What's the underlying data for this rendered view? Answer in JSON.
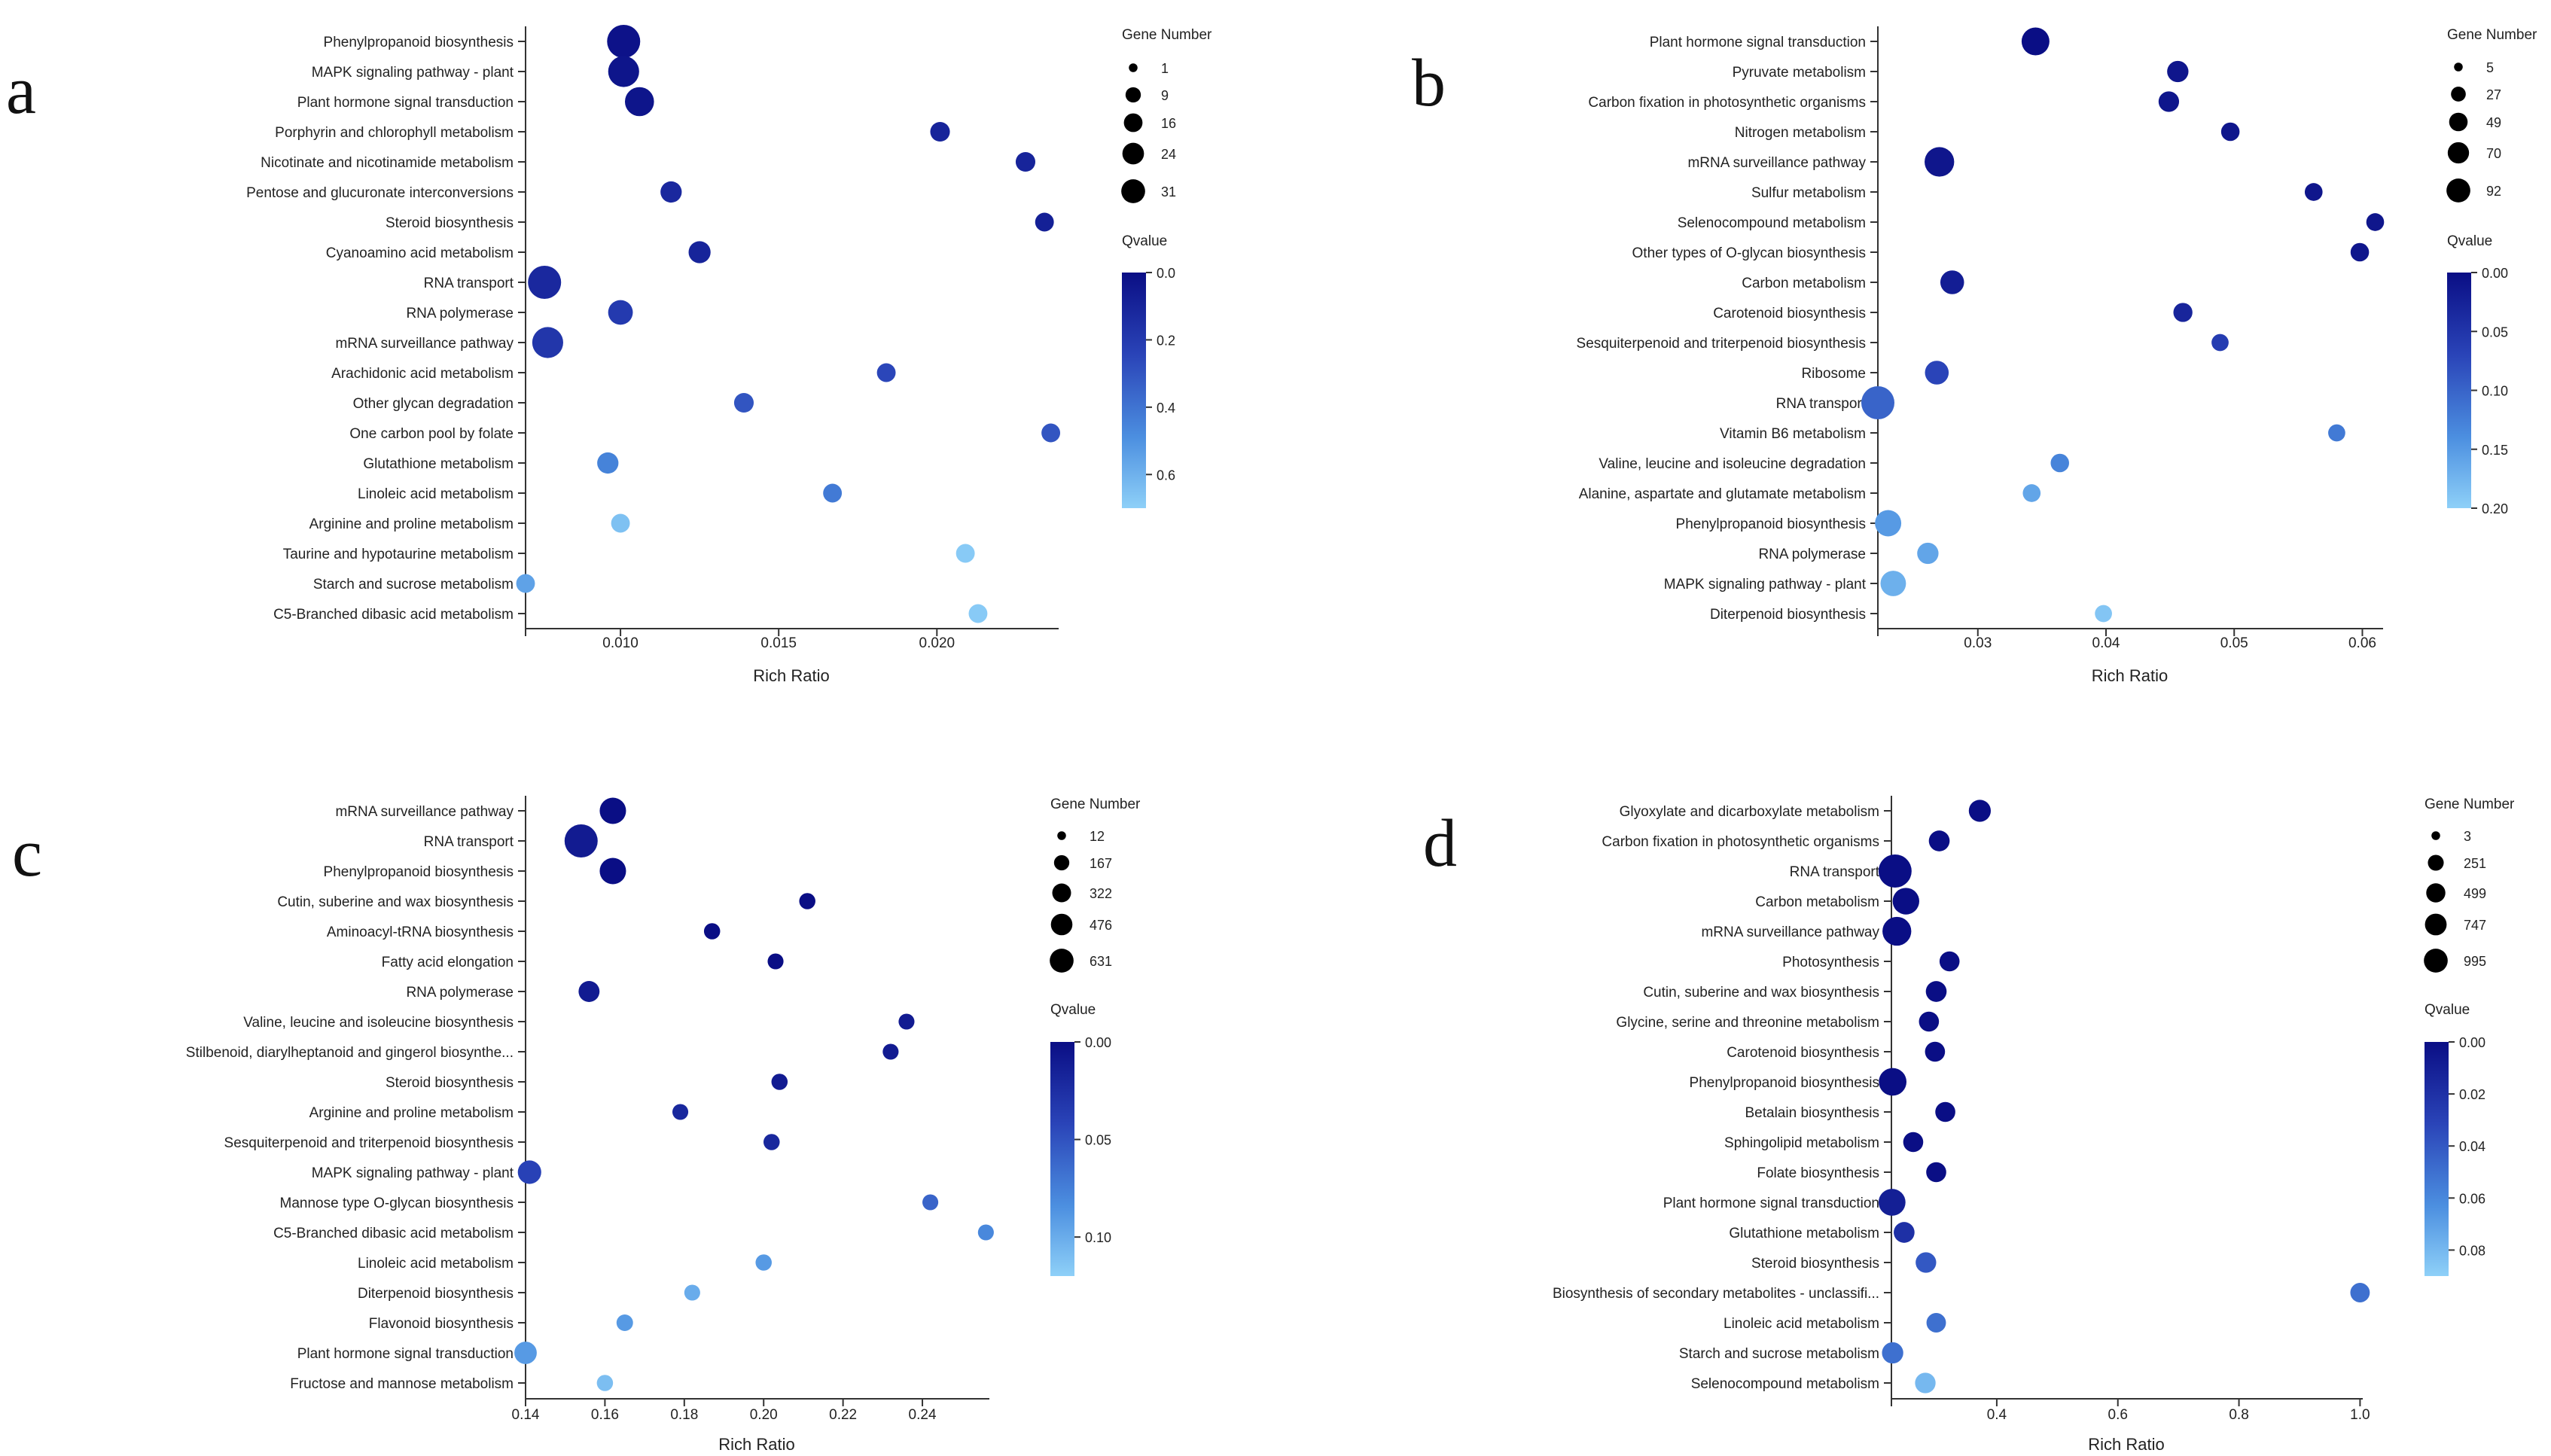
{
  "chart_data": [
    {
      "panel": "a",
      "type": "scatter",
      "xlabel": "Rich Ratio",
      "xlim": [
        0.007,
        0.0238
      ],
      "xticks": [
        "0.010",
        "0.015",
        "0.020"
      ],
      "xtick_values": [
        0.01,
        0.015,
        0.02
      ],
      "size_legend": {
        "title": "Gene Number",
        "labels": [
          "1",
          "9",
          "16",
          "24",
          "31"
        ],
        "values": [
          1,
          9,
          16,
          24,
          31
        ]
      },
      "color_legend": {
        "title": "Qvalue",
        "labels": [
          "0.0",
          "0.2",
          "0.4",
          "0.6"
        ],
        "values": [
          0.0,
          0.2,
          0.4,
          0.6
        ],
        "range": [
          0.0,
          0.7
        ]
      },
      "categories": [
        "Phenylpropanoid biosynthesis",
        "MAPK signaling pathway - plant",
        "Plant hormone signal transduction",
        "Porphyrin and chlorophyll metabolism",
        "Nicotinate and nicotinamide metabolism",
        "Pentose and glucuronate interconversions",
        "Steroid biosynthesis",
        "Cyanoamino acid metabolism",
        "RNA transport",
        "RNA polymerase",
        "mRNA surveillance pathway",
        "Arachidonic acid metabolism",
        "Other glycan degradation",
        "One carbon pool by folate",
        "Glutathione metabolism",
        "Linoleic acid metabolism",
        "Arginine and proline metabolism",
        "Taurine and hypotaurine metabolism",
        "Starch and sucrose metabolism",
        "C5-Branched dibasic acid metabolism"
      ],
      "x": [
        0.0101,
        0.0101,
        0.0106,
        0.0201,
        0.0228,
        0.0116,
        0.0234,
        0.0125,
        0.0076,
        0.01,
        0.0077,
        0.0184,
        0.0139,
        0.0236,
        0.0096,
        0.0167,
        0.01,
        0.0209,
        0.007,
        0.0213
      ],
      "gene_number": [
        31,
        26,
        22,
        7,
        7,
        9,
        6,
        10,
        31,
        14,
        26,
        6,
        7,
        6,
        9,
        6,
        6,
        6,
        6,
        6
      ],
      "qvalue": [
        0.02,
        0.03,
        0.03,
        0.1,
        0.1,
        0.12,
        0.08,
        0.1,
        0.12,
        0.2,
        0.18,
        0.25,
        0.3,
        0.3,
        0.45,
        0.42,
        0.65,
        0.68,
        0.55,
        0.68
      ]
    },
    {
      "panel": "b",
      "type": "scatter",
      "xlabel": "Rich Ratio",
      "xlim": [
        0.0222,
        0.0615
      ],
      "xticks": [
        "0.03",
        "0.04",
        "0.05",
        "0.06"
      ],
      "xtick_values": [
        0.03,
        0.04,
        0.05,
        0.06
      ],
      "size_legend": {
        "title": "Gene Number",
        "labels": [
          "5",
          "27",
          "49",
          "70",
          "92"
        ],
        "values": [
          5,
          27,
          49,
          70,
          92
        ]
      },
      "color_legend": {
        "title": "Qvalue",
        "labels": [
          "0.00",
          "0.05",
          "0.10",
          "0.15",
          "0.20"
        ],
        "values": [
          0.0,
          0.05,
          0.1,
          0.15,
          0.2
        ],
        "range": [
          0.0,
          0.2
        ]
      },
      "categories": [
        "Plant hormone signal transduction",
        "Pyruvate metabolism",
        "Carbon fixation in photosynthetic organisms",
        "Nitrogen metabolism",
        "mRNA surveillance pathway",
        "Sulfur metabolism",
        "Selenocompound metabolism",
        "Other types of O-glycan biosynthesis",
        "Carbon metabolism",
        "Carotenoid biosynthesis",
        "Sesquiterpenoid and triterpenoid biosynthesis",
        "Ribosome",
        "RNA transport",
        "Vitamin B6 metabolism",
        "Valine, leucine and isoleucine degradation",
        "Alanine, aspartate and glutamate metabolism",
        "Phenylpropanoid biosynthesis",
        "RNA polymerase",
        "MAPK signaling pathway - plant",
        "Diterpenoid biosynthesis"
      ],
      "x": [
        0.0345,
        0.0456,
        0.0449,
        0.0497,
        0.027,
        0.0562,
        0.061,
        0.0598,
        0.028,
        0.046,
        0.0489,
        0.0268,
        0.0222,
        0.058,
        0.0364,
        0.0342,
        0.023,
        0.0261,
        0.0234,
        0.0398
      ],
      "gene_number": [
        60,
        30,
        27,
        20,
        70,
        18,
        18,
        20,
        40,
        22,
        16,
        40,
        92,
        16,
        20,
        18,
        52,
        30,
        48,
        16
      ],
      "qvalue": [
        0.0,
        0.01,
        0.01,
        0.01,
        0.01,
        0.01,
        0.01,
        0.01,
        0.02,
        0.03,
        0.06,
        0.07,
        0.1,
        0.12,
        0.13,
        0.16,
        0.15,
        0.16,
        0.17,
        0.19
      ]
    },
    {
      "panel": "c",
      "type": "scatter",
      "xlabel": "Rich Ratio",
      "xlim": [
        0.14,
        0.2565
      ],
      "xticks": [
        "0.14",
        "0.16",
        "0.18",
        "0.20",
        "0.22",
        "0.24"
      ],
      "xtick_values": [
        0.14,
        0.16,
        0.18,
        0.2,
        0.22,
        0.24
      ],
      "size_legend": {
        "title": "Gene Number",
        "labels": [
          "12",
          "167",
          "322",
          "476",
          "631"
        ],
        "values": [
          12,
          167,
          322,
          476,
          631
        ]
      },
      "color_legend": {
        "title": "Qvalue",
        "labels": [
          "0.00",
          "0.05",
          "0.10"
        ],
        "values": [
          0.0,
          0.05,
          0.1
        ],
        "range": [
          0.0,
          0.12
        ]
      },
      "categories": [
        "mRNA surveillance pathway",
        "RNA transport",
        "Phenylpropanoid biosynthesis",
        "Cutin, suberine and wax biosynthesis",
        "Aminoacyl-tRNA biosynthesis",
        "Fatty acid elongation",
        "RNA polymerase",
        "Valine, leucine and isoleucine biosynthesis",
        "Stilbenoid, diarylheptanoid and gingerol biosynthe...",
        "Steroid biosynthesis",
        "Arginine and proline metabolism",
        "Sesquiterpenoid and triterpenoid biosynthesis",
        "MAPK signaling pathway - plant",
        "Mannose type O-glycan biosynthesis",
        "C5-Branched dibasic acid metabolism",
        "Linoleic acid metabolism",
        "Diterpenoid biosynthesis",
        "Flavonoid biosynthesis",
        "Plant hormone signal transduction",
        "Fructose and mannose metabolism"
      ],
      "x": [
        0.162,
        0.154,
        0.162,
        0.211,
        0.187,
        0.203,
        0.156,
        0.236,
        0.232,
        0.204,
        0.179,
        0.202,
        0.141,
        0.242,
        0.256,
        0.2,
        0.182,
        0.165,
        0.14,
        0.16
      ],
      "gene_number": [
        330,
        631,
        330,
        60,
        60,
        55,
        160,
        55,
        55,
        60,
        55,
        60,
        230,
        55,
        55,
        60,
        55,
        65,
        200,
        60
      ],
      "qvalue": [
        0.0,
        0.01,
        0.0,
        0.0,
        0.0,
        0.0,
        0.01,
        0.01,
        0.01,
        0.01,
        0.02,
        0.02,
        0.04,
        0.06,
        0.08,
        0.09,
        0.1,
        0.09,
        0.09,
        0.11
      ]
    },
    {
      "panel": "d",
      "type": "scatter",
      "xlabel": "Rich Ratio",
      "xlim": [
        0.226,
        1.002
      ],
      "xticks": [
        "0.4",
        "0.6",
        "0.8",
        "1.0"
      ],
      "xtick_values": [
        0.4,
        0.6,
        0.8,
        1.0
      ],
      "size_legend": {
        "title": "Gene Number",
        "labels": [
          "3",
          "251",
          "499",
          "747",
          "995"
        ],
        "values": [
          3,
          251,
          499,
          747,
          995
        ]
      },
      "color_legend": {
        "title": "Qvalue",
        "labels": [
          "0.00",
          "0.02",
          "0.04",
          "0.06",
          "0.08"
        ],
        "values": [
          0.0,
          0.02,
          0.04,
          0.06,
          0.08
        ],
        "range": [
          0.0,
          0.09
        ]
      },
      "categories": [
        "Glyoxylate and dicarboxylate metabolism",
        "Carbon fixation in photosynthetic organisms",
        "RNA transport",
        "Carbon metabolism",
        "mRNA surveillance pathway",
        "Photosynthesis",
        "Cutin, suberine and wax biosynthesis",
        "Glycine, serine and threonine metabolism",
        "Carotenoid biosynthesis",
        "Phenylpropanoid biosynthesis",
        "Betalain biosynthesis",
        "Sphingolipid metabolism",
        "Folate biosynthesis",
        "Plant hormone signal transduction",
        "Glutathione metabolism",
        "Steroid biosynthesis",
        "Biosynthesis of secondary metabolites - unclassifi...",
        "Linoleic acid metabolism",
        "Starch and sucrose metabolism",
        "Selenocompound metabolism"
      ],
      "x": [
        0.372,
        0.305,
        0.232,
        0.25,
        0.235,
        0.322,
        0.3,
        0.288,
        0.298,
        0.228,
        0.315,
        0.262,
        0.3,
        0.227,
        0.247,
        0.283,
        1.0,
        0.3,
        0.228,
        0.282
      ],
      "gene_number": [
        250,
        200,
        995,
        500,
        650,
        170,
        200,
        170,
        170,
        570,
        170,
        170,
        170,
        520,
        200,
        190,
        150,
        150,
        220,
        190
      ],
      "qvalue": [
        0.0,
        0.0,
        0.0,
        0.0,
        0.0,
        0.0,
        0.0,
        0.0,
        0.0,
        0.0,
        0.0,
        0.0,
        0.0,
        0.01,
        0.02,
        0.04,
        0.05,
        0.05,
        0.05,
        0.08
      ]
    }
  ]
}
